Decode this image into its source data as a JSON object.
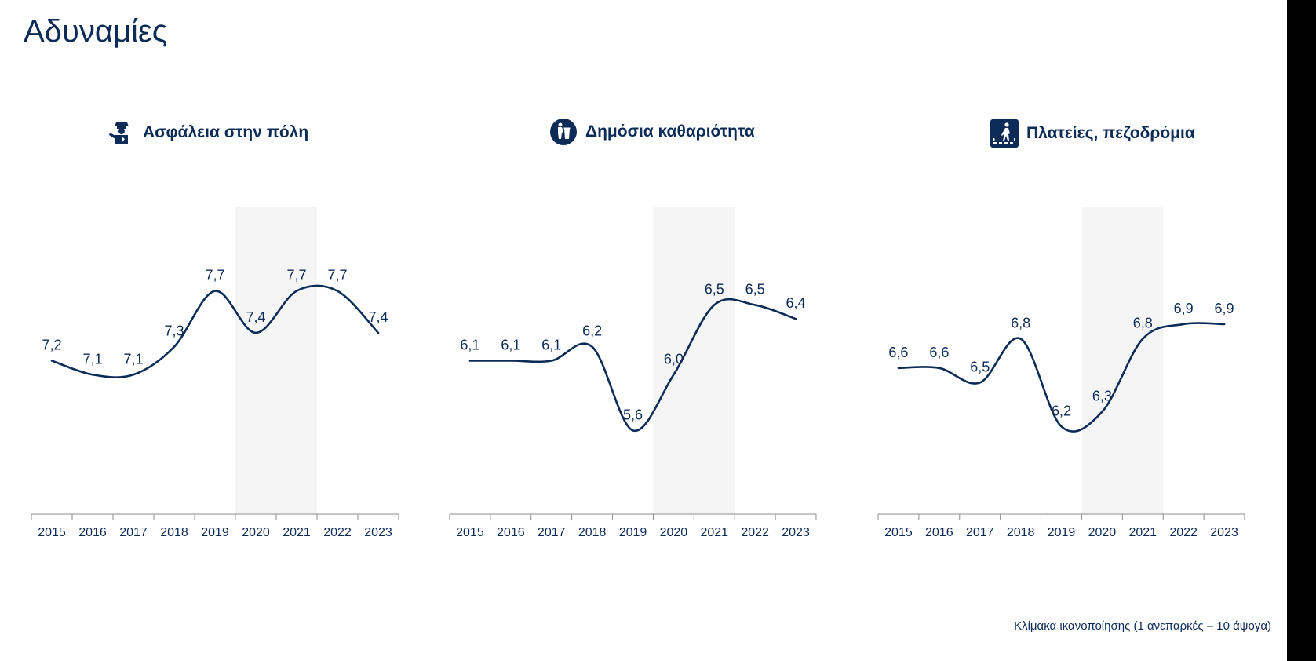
{
  "page": {
    "title": "Αδυναμίες"
  },
  "footnote": "Κλίμακα ικανοποίησης (1 ανεπαρκές – 10 άψογα)",
  "colors": {
    "line": "#0d2b57",
    "highlight": "#f5f5f5",
    "axis": "#8c8c8c"
  },
  "chart_data": [
    {
      "type": "line",
      "title": "Ασφάλεια στην πόλη",
      "icon": "police-officer-icon",
      "categories": [
        "2015",
        "2016",
        "2017",
        "2018",
        "2019",
        "2020",
        "2021",
        "2022",
        "2023"
      ],
      "values": [
        7.2,
        7.1,
        7.1,
        7.3,
        7.7,
        7.4,
        7.7,
        7.7,
        7.4
      ],
      "labels": [
        "7,2",
        "7,1",
        "7,1",
        "7,3",
        "7,7",
        "7,4",
        "7,7",
        "7,7",
        "7,4"
      ],
      "highlight_range": [
        "2020",
        "2021"
      ],
      "ylim": [
        6.1,
        8.3
      ]
    },
    {
      "type": "line",
      "title": "Δημόσια καθαριότητα",
      "icon": "trash-bin-icon",
      "categories": [
        "2015",
        "2016",
        "2017",
        "2018",
        "2019",
        "2020",
        "2021",
        "2022",
        "2023"
      ],
      "values": [
        6.1,
        6.1,
        6.1,
        6.2,
        5.6,
        6.0,
        6.5,
        6.5,
        6.4
      ],
      "labels": [
        "6,1",
        "6,1",
        "6,1",
        "6,2",
        "5,6",
        "6,0",
        "6,5",
        "6,5",
        "6,4"
      ],
      "highlight_range": [
        "2020",
        "2021"
      ],
      "ylim": [
        5.0,
        7.2
      ]
    },
    {
      "type": "line",
      "title": "Πλατείες, πεζοδρόμια",
      "icon": "pedestrian-crossing-icon",
      "categories": [
        "2015",
        "2016",
        "2017",
        "2018",
        "2019",
        "2020",
        "2021",
        "2022",
        "2023"
      ],
      "values": [
        6.6,
        6.6,
        6.5,
        6.8,
        6.2,
        6.3,
        6.8,
        6.9,
        6.9
      ],
      "labels": [
        "6,6",
        "6,6",
        "6,5",
        "6,8",
        "6,2",
        "6,3",
        "6,8",
        "6,9",
        "6,9"
      ],
      "highlight_range": [
        "2020",
        "2021"
      ],
      "ylim": [
        5.6,
        7.7
      ]
    }
  ]
}
